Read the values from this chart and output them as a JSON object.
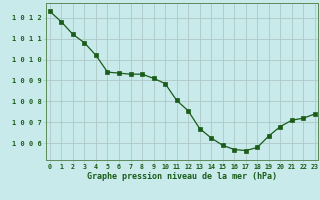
{
  "x": [
    0,
    1,
    2,
    3,
    4,
    5,
    6,
    7,
    8,
    9,
    10,
    11,
    12,
    13,
    14,
    15,
    16,
    17,
    18,
    19,
    20,
    21,
    22,
    23
  ],
  "y": [
    1012.3,
    1011.8,
    1011.2,
    1010.8,
    1010.2,
    1009.4,
    1009.35,
    1009.3,
    1009.3,
    1009.1,
    1008.85,
    1008.05,
    1007.55,
    1006.7,
    1006.25,
    1005.9,
    1005.7,
    1005.65,
    1005.8,
    1006.35,
    1006.8,
    1007.1,
    1007.2,
    1007.4
  ],
  "line_color": "#1a5c1a",
  "marker_color": "#1a5c1a",
  "bg_color": "#c8eaea",
  "grid_color": "#b0c8c8",
  "text_color": "#1a5c1a",
  "xlabel": "Graphe pression niveau de la mer (hPa)",
  "ytick_labels": [
    "1006",
    "1007",
    "1008",
    "1009",
    "1010",
    "1011",
    "1012"
  ],
  "yticks": [
    1006,
    1007,
    1008,
    1009,
    1010,
    1011,
    1012
  ],
  "xticks": [
    0,
    1,
    2,
    3,
    4,
    5,
    6,
    7,
    8,
    9,
    10,
    11,
    12,
    13,
    14,
    15,
    16,
    17,
    18,
    19,
    20,
    21,
    22,
    23
  ],
  "ylim": [
    1005.2,
    1012.7
  ],
  "xlim": [
    -0.3,
    23.3
  ]
}
